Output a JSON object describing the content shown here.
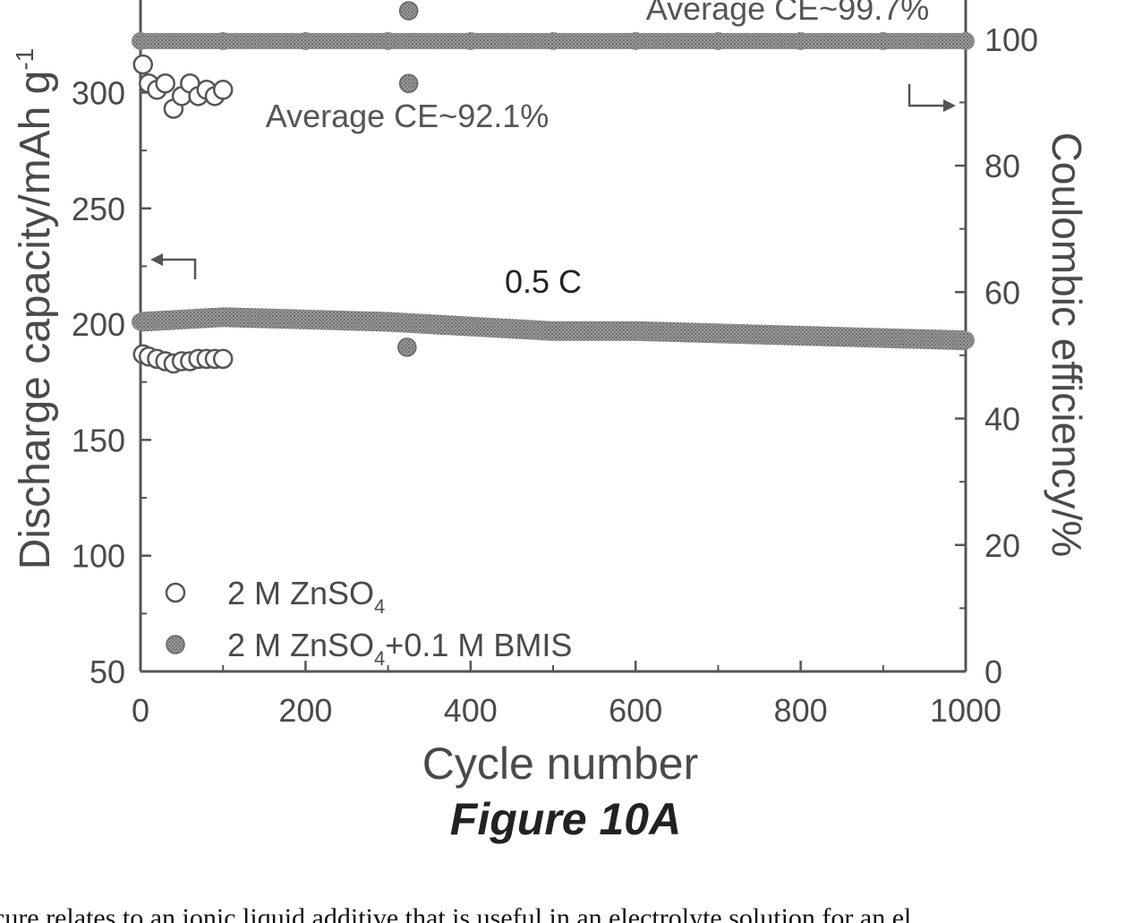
{
  "figure_caption": "Figure 10A",
  "body_text": "cure relates to an ionic liquid additive that is useful in an electrolyte solution for an el",
  "chart_data": {
    "type": "scatter",
    "xlabel": "Cycle number",
    "ylabel_left": "Discharge capacity/mAh g",
    "ylabel_left_superscript": "-1",
    "ylabel_right": "Coulombic efficiency/%",
    "xlim": [
      0,
      1000
    ],
    "ylim_left": [
      50,
      340
    ],
    "ylim_right": [
      0,
      106.2
    ],
    "x_ticks": [
      0,
      200,
      400,
      600,
      800,
      1000
    ],
    "y_left_ticks": [
      50,
      100,
      150,
      200,
      250,
      300
    ],
    "y_right_ticks": [
      0,
      20,
      40,
      60,
      80,
      100
    ],
    "annotations": {
      "ce_additive": "Average CE~99.7%",
      "ce_plain": "Average CE~92.1%",
      "rate": "0.5 C"
    },
    "legend": {
      "placement": "bottom-left",
      "entries": [
        {
          "label": "2 M ZnSO",
          "sub": "4",
          "tail": "",
          "marker": "open-circle"
        },
        {
          "label": "2 M ZnSO",
          "sub": "4",
          "tail": "+0.1 M BMIS",
          "marker": "filled-circle"
        }
      ]
    },
    "series": [
      {
        "label_ref": "2 M ZnSO4",
        "axis": "left",
        "marker": "open",
        "x": [
          3,
          10,
          20,
          30,
          40,
          50,
          60,
          70,
          80,
          90,
          100
        ],
        "y": [
          187,
          186,
          185,
          184,
          183,
          184,
          184,
          185,
          185,
          185,
          185
        ]
      },
      {
        "label_ref": "2 M ZnSO4",
        "axis": "right",
        "marker": "open",
        "x": [
          3,
          10,
          20,
          30,
          40,
          50,
          60,
          70,
          80,
          90,
          100
        ],
        "y": [
          96,
          93,
          92,
          93,
          89,
          91,
          93,
          91,
          92,
          91,
          92
        ]
      },
      {
        "label_ref": "2 M ZnSO4+0.1 M BMIS",
        "axis": "left",
        "marker": "filled",
        "x": [
          0,
          100,
          200,
          300,
          400,
          500,
          600,
          700,
          800,
          900,
          1000
        ],
        "y": [
          201,
          203,
          202,
          201,
          199,
          197,
          197,
          196,
          195,
          194,
          193
        ],
        "outliers": [
          {
            "x": 323,
            "y": 190
          }
        ]
      },
      {
        "label_ref": "2 M ZnSO4+0.1 M BMIS",
        "axis": "right",
        "marker": "filled",
        "x": [
          0,
          100,
          200,
          300,
          400,
          500,
          600,
          700,
          800,
          900,
          1000
        ],
        "y": [
          99.7,
          99.7,
          99.7,
          99.7,
          99.7,
          99.7,
          99.7,
          99.7,
          99.7,
          99.7,
          99.7
        ],
        "outliers": [
          {
            "x": 325,
            "y": 104.5
          },
          {
            "x": 325,
            "y": 93
          }
        ]
      }
    ]
  }
}
